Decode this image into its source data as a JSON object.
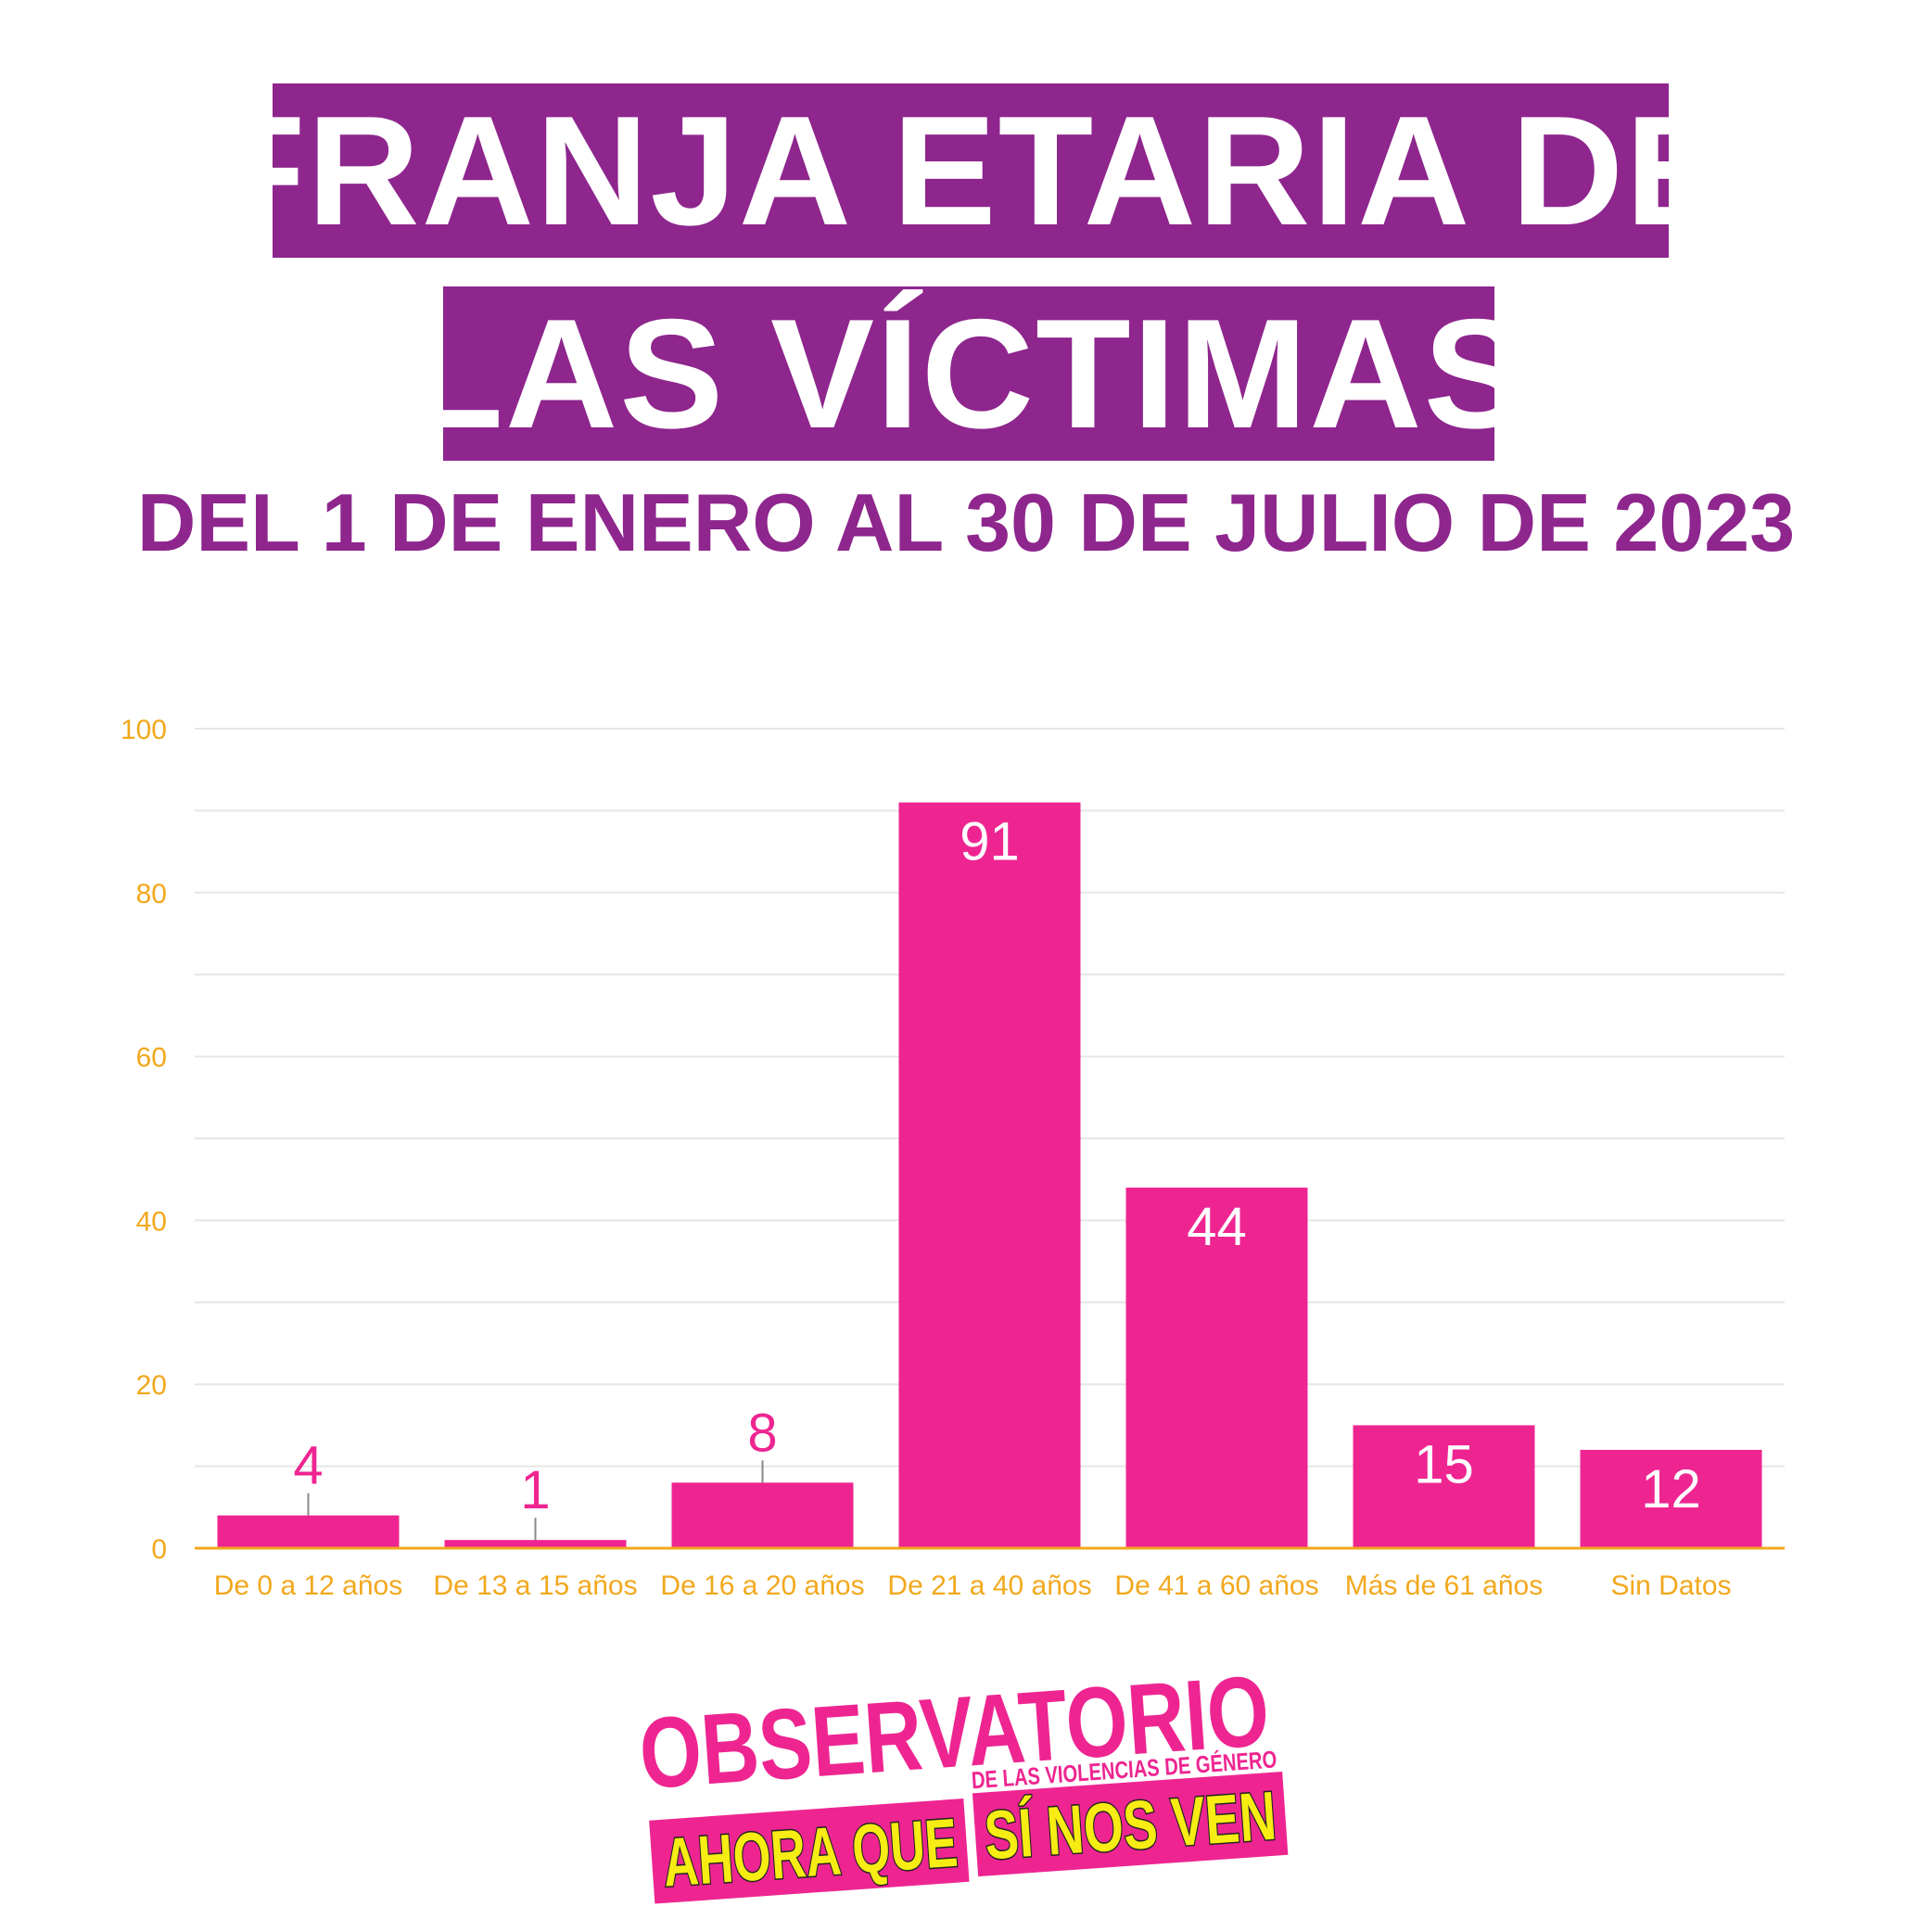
{
  "title_lines": [
    "FRANJA ETARIA DE",
    "LAS VÍCTIMAS"
  ],
  "subtitle": "DEL 1 DE ENERO AL 30 DE JULIO DE 2023",
  "colors": {
    "title_bg": "#8e268d",
    "bar": "#ee2591",
    "axis_text": "#f2a81d",
    "logo_yellow": "#f7ec13"
  },
  "chart_data": {
    "type": "bar",
    "categories": [
      "De 0 a 12 años",
      "De 13 a 15 años",
      "De 16 a 20 años",
      "De 21 a 40 años",
      "De 41 a 60 años",
      "Más de 61 años",
      "Sin Datos"
    ],
    "values": [
      4,
      1,
      8,
      91,
      44,
      15,
      12
    ],
    "ylim": [
      0,
      100
    ],
    "yticks": [
      0,
      20,
      40,
      60,
      80,
      100
    ],
    "grid": true,
    "legend": "none"
  },
  "logo": {
    "line1": "OBSERVATORIO",
    "line2": "DE LAS VIOLENCIAS DE GÉNERO",
    "line3a": "AHORA QUE",
    "line3b": "SÍ NOS VEN"
  }
}
